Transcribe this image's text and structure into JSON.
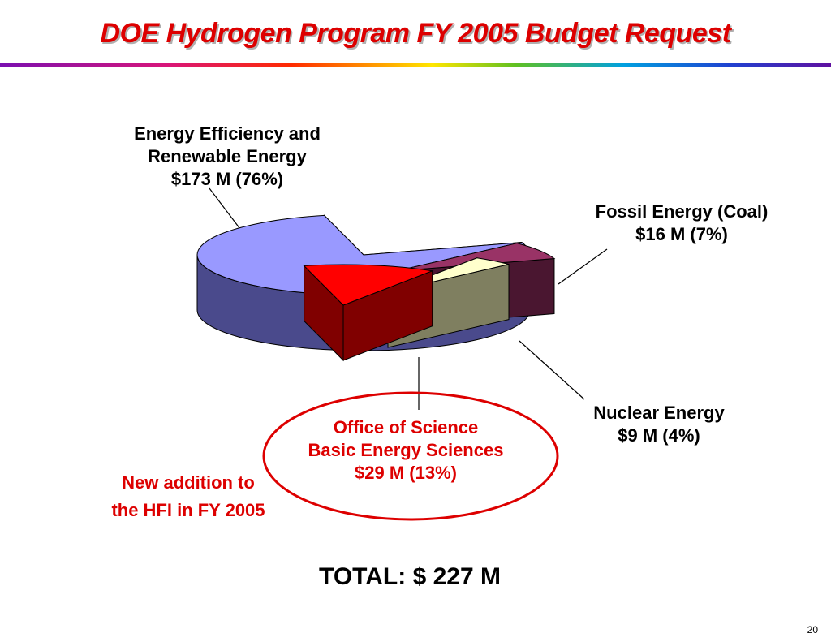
{
  "title": "DOE Hydrogen Program FY 2005 Budget Request",
  "chart_data": {
    "type": "pie",
    "title": "DOE Hydrogen Program FY 2005 Budget Request",
    "total_label": "TOTAL:  $ 227 M",
    "slices": [
      {
        "lines": [
          "Energy Efficiency and",
          "Renewable Energy",
          "$173 M   (76%)"
        ],
        "amount_musd": 173,
        "percent": 76,
        "color": "#9999ff",
        "side_color": "#4a4a8c"
      },
      {
        "lines": [
          "Office of Science",
          "Basic Energy Sciences",
          "$29 M  (13%)"
        ],
        "amount_musd": 29,
        "percent": 13,
        "color": "#ff0000",
        "side_color": "#800000",
        "text_color": "#dd0000"
      },
      {
        "lines": [
          "Nuclear Energy",
          "$9 M   (4%)"
        ],
        "amount_musd": 9,
        "percent": 4,
        "color": "#ffffcc",
        "side_color": "#7f7f60"
      },
      {
        "lines": [
          "Fossil Energy (Coal)",
          "$16 M   (7%)"
        ],
        "amount_musd": 16,
        "percent": 7,
        "color": "#993366",
        "side_color": "#4a1630"
      }
    ]
  },
  "note": {
    "lines": [
      "New addition to",
      "the HFI in FY 2005"
    ],
    "color": "#dd0000"
  },
  "page_number": "20"
}
